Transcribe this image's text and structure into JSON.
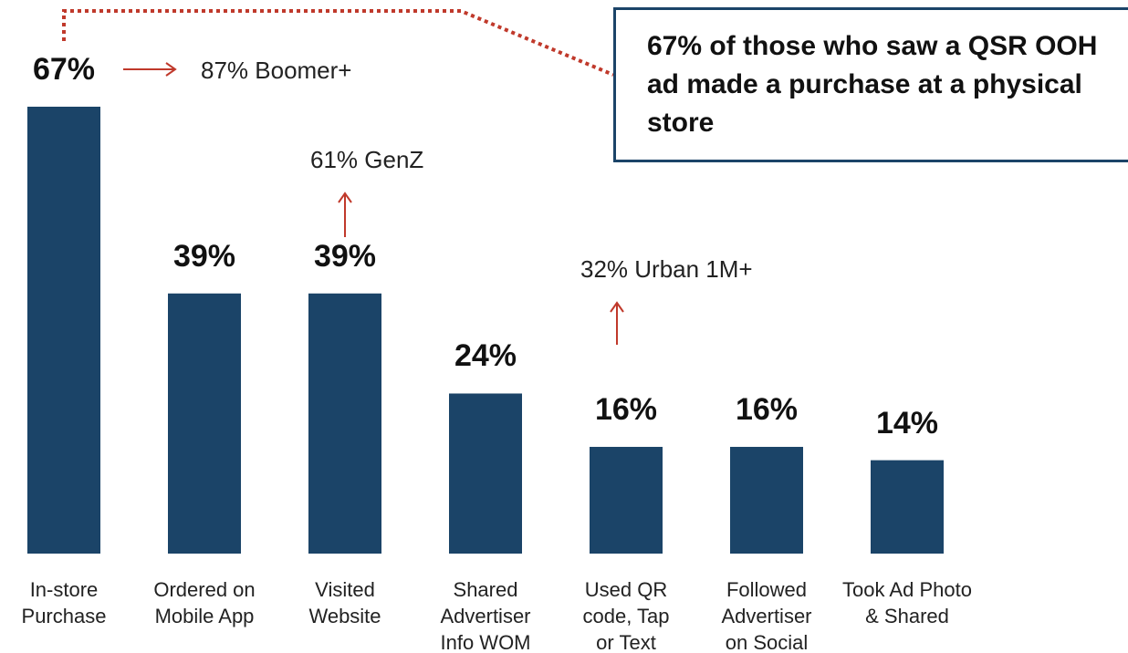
{
  "chart_data": {
    "type": "bar",
    "categories": [
      "In-store\nPurchase",
      "Ordered on\nMobile App",
      "Visited\nWebsite",
      "Shared\nAdvertiser\nInfo WOM",
      "Used QR\ncode, Tap\nor Text",
      "Followed\nAdvertiser\non Social",
      "Took Ad Photo\n& Shared"
    ],
    "values": [
      67,
      39,
      39,
      24,
      16,
      16,
      14
    ],
    "value_labels": [
      "67%",
      "39%",
      "39%",
      "24%",
      "16%",
      "16%",
      "14%"
    ],
    "color": "#1b4468",
    "annotations": [
      {
        "text": "87% Boomer+"
      },
      {
        "text": "61% GenZ"
      },
      {
        "text": "32% Urban 1M+"
      }
    ],
    "callout": "67% of those who saw a QSR OOH ad made a purchase at a physical store"
  }
}
